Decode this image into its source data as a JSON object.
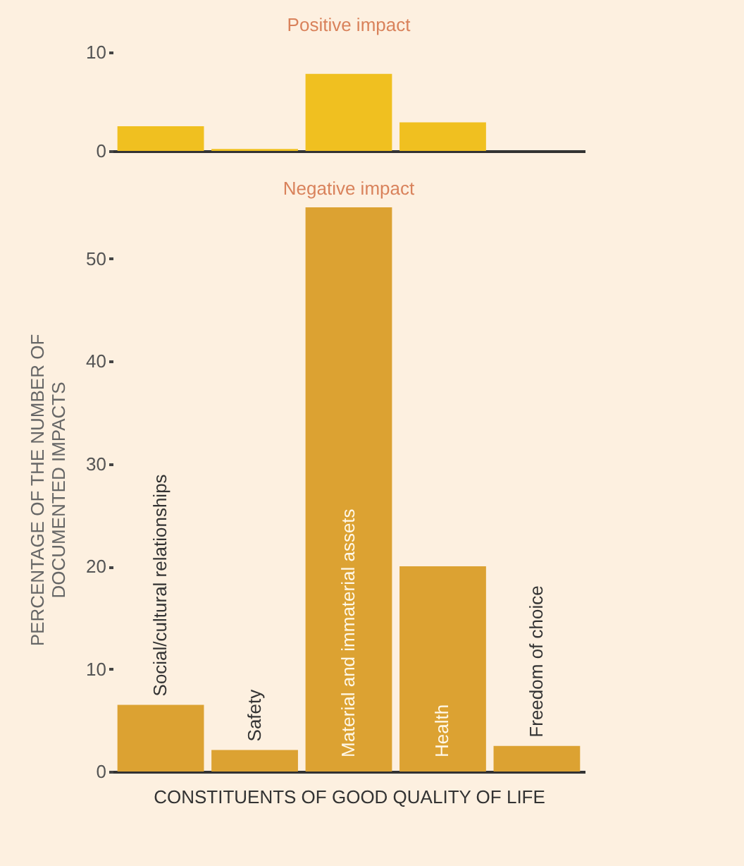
{
  "chart_data": [
    {
      "type": "bar",
      "title": "Positive impact",
      "categories": [
        null,
        null,
        null,
        null,
        null
      ],
      "values": [
        2.5,
        0.2,
        7.8,
        2.9,
        0
      ],
      "color": "#f0c020",
      "ylim": [
        0,
        10
      ],
      "yticks": [
        0,
        10
      ],
      "grid": false,
      "tick_labels": "y"
    },
    {
      "type": "bar",
      "title": "Negative impact",
      "xlabel": "CONSTITUENTS OF GOOD QUALITY OF LIFE",
      "ylabel": "PERCENTAGE OF THE NUMBER OF\nDOCUMENTED IMPACTS",
      "categories": [
        "Social/cultural relationships",
        "Safety",
        "Material and immaterial assets",
        "Health",
        "Freedom of choice"
      ],
      "values": [
        6.5,
        2.1,
        55,
        20,
        2.5
      ],
      "color": "#dca232",
      "ylim": [
        0,
        55
      ],
      "yticks": [
        0,
        10,
        20,
        30,
        40,
        50
      ],
      "grid": false
    }
  ]
}
